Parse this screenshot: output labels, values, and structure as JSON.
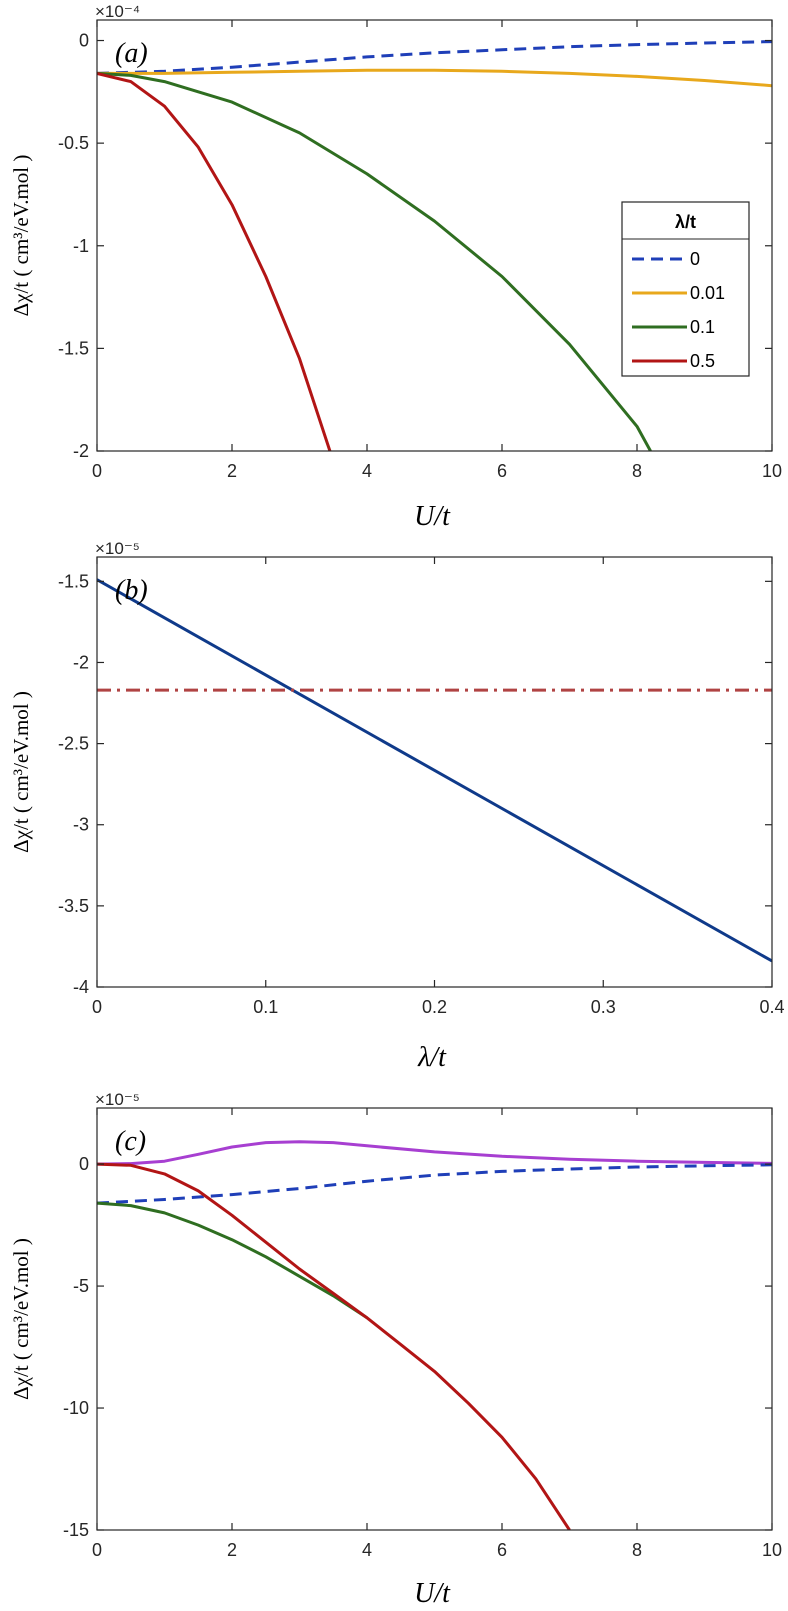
{
  "chart_data": [
    {
      "type": "line",
      "panel_label": "(a)",
      "xlabel": "U/t",
      "ylabel": "Δχ/t ( cm³/eV.mol )",
      "y_multiplier": "×10⁻⁴",
      "xlim": [
        0,
        10
      ],
      "ylim": [
        -2,
        0.1
      ],
      "xticks": [
        0,
        2,
        4,
        6,
        8,
        10
      ],
      "xtick_labels": [
        "0",
        "2",
        "4",
        "6",
        "8",
        "10"
      ],
      "yticks": [
        0,
        -0.5,
        -1,
        -1.5,
        -2
      ],
      "ytick_labels": [
        "0",
        "-0.5",
        "-1",
        "-1.5",
        "-2"
      ],
      "grid": false,
      "legend": {
        "title": "λ/t",
        "position": "right"
      },
      "series": [
        {
          "name": "0",
          "color": "#1f3fb8",
          "dash": "dashed",
          "x": [
            0,
            1,
            2,
            3,
            4,
            5,
            6,
            7,
            8,
            9,
            10
          ],
          "y": [
            -0.16,
            -0.15,
            -0.13,
            -0.105,
            -0.08,
            -0.06,
            -0.045,
            -0.03,
            -0.02,
            -0.012,
            -0.005
          ]
        },
        {
          "name": "0.01",
          "color": "#e8a81c",
          "dash": "solid",
          "x": [
            0,
            1,
            2,
            3,
            4,
            5,
            6,
            7,
            8,
            9,
            10
          ],
          "y": [
            -0.16,
            -0.16,
            -0.155,
            -0.15,
            -0.145,
            -0.145,
            -0.15,
            -0.16,
            -0.175,
            -0.195,
            -0.22
          ]
        },
        {
          "name": "0.1",
          "color": "#2f6e21",
          "dash": "solid",
          "x": [
            0,
            0.5,
            1,
            2,
            3,
            4,
            5,
            6,
            7,
            8,
            8.2
          ],
          "y": [
            -0.16,
            -0.17,
            -0.2,
            -0.3,
            -0.45,
            -0.65,
            -0.88,
            -1.15,
            -1.48,
            -1.88,
            -2.0
          ]
        },
        {
          "name": "0.5",
          "color": "#b21515",
          "dash": "solid",
          "x": [
            0,
            0.5,
            1,
            1.5,
            2,
            2.5,
            3,
            3.45
          ],
          "y": [
            -0.16,
            -0.2,
            -0.32,
            -0.52,
            -0.8,
            -1.15,
            -1.55,
            -2.0
          ]
        }
      ]
    },
    {
      "type": "line",
      "panel_label": "(b)",
      "xlabel": "λ/t",
      "ylabel": "Δχ/t ( cm³/eV.mol )",
      "y_multiplier": "×10⁻⁵",
      "xlim": [
        0,
        0.4
      ],
      "ylim": [
        -4,
        -1.35
      ],
      "xticks": [
        0,
        0.1,
        0.2,
        0.3,
        0.4
      ],
      "xtick_labels": [
        "0",
        "0.1",
        "0.2",
        "0.3",
        "0.4"
      ],
      "yticks": [
        -1.5,
        -2,
        -2.5,
        -3,
        -3.5,
        -4
      ],
      "ytick_labels": [
        "-1.5",
        "-2",
        "-2.5",
        "-3",
        "-3.5",
        "-4"
      ],
      "grid": false,
      "series": [
        {
          "color": "#0f3a8a",
          "dash": "solid",
          "x": [
            0,
            0.4
          ],
          "y": [
            -1.49,
            -3.84
          ]
        },
        {
          "color": "#b04343",
          "dash": "dashdot",
          "x": [
            0,
            0.4
          ],
          "y": [
            -2.17,
            -2.17
          ]
        }
      ]
    },
    {
      "type": "line",
      "panel_label": "(c)",
      "xlabel": "U/t",
      "ylabel": "Δχ/t ( cm³/eV.mol )",
      "y_multiplier": "×10⁻⁵",
      "xlim": [
        0,
        10
      ],
      "ylim": [
        -15,
        2.3
      ],
      "xticks": [
        0,
        2,
        4,
        6,
        8,
        10
      ],
      "xtick_labels": [
        "0",
        "2",
        "4",
        "6",
        "8",
        "10"
      ],
      "yticks": [
        0,
        -5,
        -10,
        -15
      ],
      "ytick_labels": [
        "0",
        "-5",
        "-10",
        "-15"
      ],
      "grid": false,
      "series": [
        {
          "color": "#a73fd1",
          "dash": "solid",
          "x": [
            0,
            0.5,
            1,
            1.5,
            2,
            2.5,
            3,
            3.5,
            4,
            5,
            6,
            7,
            8,
            9,
            10
          ],
          "y": [
            0,
            0.02,
            0.12,
            0.4,
            0.7,
            0.88,
            0.92,
            0.88,
            0.75,
            0.5,
            0.32,
            0.2,
            0.12,
            0.07,
            0.03
          ]
        },
        {
          "color": "#1f3fb8",
          "dash": "dashed",
          "x": [
            0,
            1,
            2,
            3,
            4,
            5,
            6,
            7,
            8,
            9,
            10
          ],
          "y": [
            -1.6,
            -1.45,
            -1.25,
            -1.0,
            -0.7,
            -0.45,
            -0.3,
            -0.2,
            -0.12,
            -0.07,
            -0.03
          ]
        },
        {
          "color": "#2f6e21",
          "dash": "solid",
          "x": [
            0,
            0.5,
            1,
            1.5,
            2,
            2.5,
            3,
            3.5,
            4
          ],
          "y": [
            -1.6,
            -1.7,
            -2.0,
            -2.5,
            -3.1,
            -3.8,
            -4.6,
            -5.4,
            -6.3
          ]
        },
        {
          "color": "#b21515",
          "dash": "solid",
          "x": [
            0,
            0.5,
            1,
            1.5,
            2,
            2.5,
            3,
            3.5,
            4,
            4.5,
            5,
            5.5,
            6,
            6.5,
            7
          ],
          "y": [
            0,
            -0.05,
            -0.4,
            -1.1,
            -2.1,
            -3.2,
            -4.3,
            -5.3,
            -6.3,
            -7.4,
            -8.5,
            -9.8,
            -11.2,
            -12.9,
            -15.0
          ]
        }
      ]
    }
  ]
}
